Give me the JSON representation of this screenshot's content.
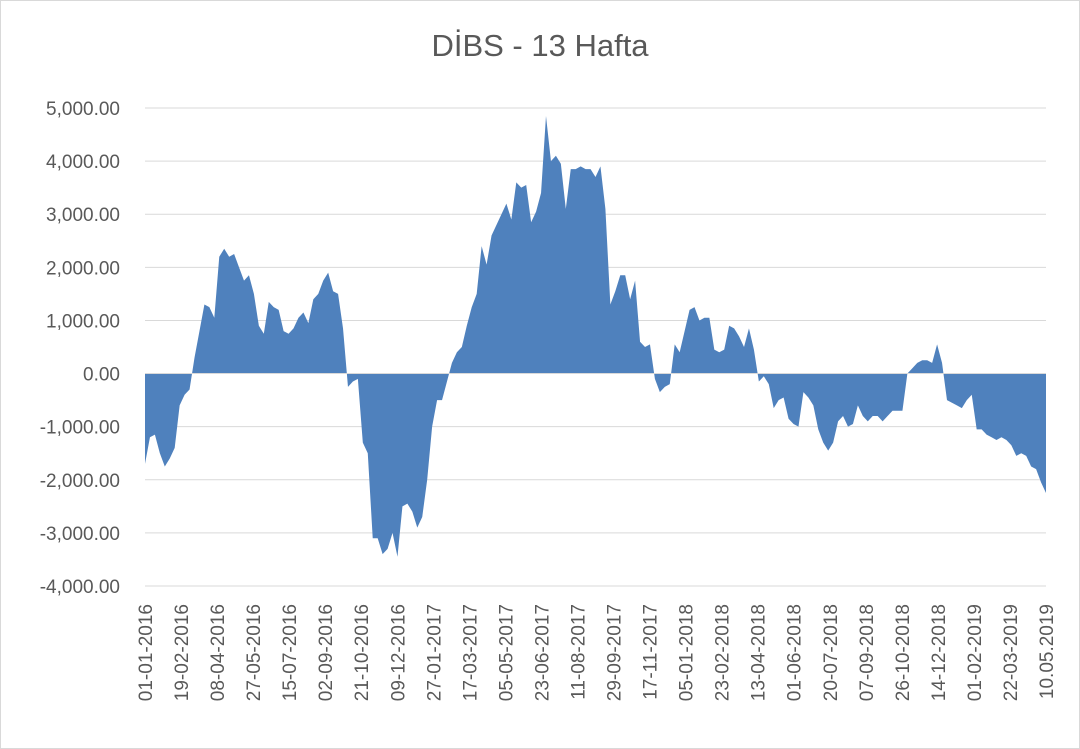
{
  "chart_data": {
    "type": "area",
    "title": "DİBS - 13 Hafta",
    "xlabel": "",
    "ylabel": "",
    "ylim": [
      -4000,
      5000
    ],
    "y_ticks": [
      5000,
      4000,
      3000,
      2000,
      1000,
      0,
      -1000,
      -2000,
      -3000,
      -4000
    ],
    "y_tick_labels": [
      "5,000.00",
      "4,000.00",
      "3,000.00",
      "2,000.00",
      "1,000.00",
      "0.00",
      "-1,000.00",
      "-2,000.00",
      "-3,000.00",
      "-4,000.00"
    ],
    "x_tick_labels": [
      "01-01-2016",
      "19-02-2016",
      "08-04-2016",
      "27-05-2016",
      "15-07-2016",
      "02-09-2016",
      "21-10-2016",
      "09-12-2016",
      "27-01-2017",
      "17-03-2017",
      "05-05-2017",
      "23-06-2017",
      "11-08-2017",
      "29-09-2017",
      "17-11-2017",
      "05-01-2018",
      "23-02-2018",
      "13-04-2018",
      "01-06-2018",
      "20-07-2018",
      "07-09-2018",
      "26-10-2018",
      "14-12-2018",
      "01-02-2019",
      "22-03-2019",
      "10.05.2019"
    ],
    "grid": true,
    "legend": "none",
    "fill_color": "#4f81bd",
    "series": [
      {
        "values": [
          -1700,
          -1200,
          -1150,
          -1500,
          -1750,
          -1600,
          -1400,
          -600,
          -400,
          -300,
          300,
          800,
          1300,
          1250,
          1050,
          2200,
          2350,
          2200,
          2250,
          2000,
          1750,
          1850,
          1500,
          900,
          750,
          1350,
          1250,
          1200,
          800,
          750,
          850,
          1050,
          1150,
          950,
          1400,
          1500,
          1750,
          1900,
          1550,
          1500,
          850,
          -250,
          -150,
          -100,
          -1300,
          -1500,
          -3100,
          -3100,
          -3400,
          -3300,
          -3000,
          -3450,
          -2500,
          -2450,
          -2600,
          -2900,
          -2700,
          -2000,
          -1000,
          -500,
          -500,
          -150,
          200,
          400,
          500,
          900,
          1250,
          1500,
          2400,
          2050,
          2600,
          2800,
          3000,
          3200,
          2900,
          3600,
          3500,
          3550,
          2850,
          3050,
          3400,
          4850,
          4000,
          4100,
          3950,
          3100,
          3850,
          3850,
          3900,
          3850,
          3850,
          3700,
          3900,
          3100,
          1300,
          1550,
          1850,
          1850,
          1400,
          1750,
          600,
          500,
          550,
          -100,
          -350,
          -250,
          -200,
          550,
          400,
          800,
          1200,
          1250,
          1000,
          1050,
          1050,
          450,
          400,
          450,
          900,
          850,
          700,
          500,
          850,
          450,
          -150,
          -50,
          -200,
          -650,
          -500,
          -450,
          -850,
          -950,
          -1000,
          -350,
          -450,
          -600,
          -1050,
          -1300,
          -1450,
          -1300,
          -900,
          -800,
          -1000,
          -950,
          -600,
          -800,
          -900,
          -800,
          -800,
          -900,
          -800,
          -700,
          -700,
          -700,
          0,
          100,
          200,
          250,
          250,
          200,
          550,
          200,
          -500,
          -550,
          -600,
          -650,
          -500,
          -400,
          -1050,
          -1050,
          -1150,
          -1200,
          -1250,
          -1200,
          -1250,
          -1350,
          -1550,
          -1500,
          -1550,
          -1750,
          -1800,
          -2050,
          -2250
        ]
      }
    ]
  }
}
